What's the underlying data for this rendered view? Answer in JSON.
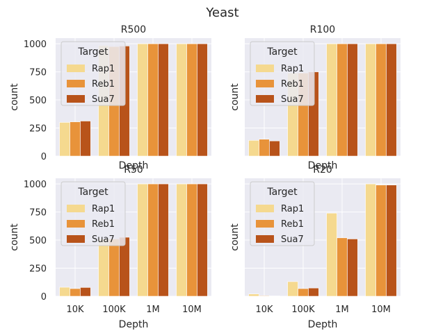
{
  "figure": {
    "title": "Yeast"
  },
  "legend": {
    "title": "Target",
    "entries": [
      "Rap1",
      "Reb1",
      "Sua7"
    ],
    "colors": [
      "#f5d98f",
      "#e8933a",
      "#b8531a"
    ]
  },
  "colors": {
    "panel_background": "#eaeaf2",
    "grid": "#ffffff",
    "text": "#262626"
  },
  "chart_data": [
    {
      "type": "bar",
      "title": "R500",
      "categories": [
        "10K",
        "100K",
        "1M",
        "10M"
      ],
      "xlabel": "Depth",
      "ylabel": "count",
      "ylim": [
        0,
        1050
      ],
      "yticks": [
        0,
        250,
        500,
        750,
        1000
      ],
      "show_xticks": false,
      "show_yticks": true,
      "grid": true,
      "legend_position": "upper-left",
      "series": [
        {
          "name": "Rap1",
          "values": [
            300,
            985,
            1000,
            1000
          ]
        },
        {
          "name": "Reb1",
          "values": [
            305,
            975,
            1000,
            1000
          ]
        },
        {
          "name": "Sua7",
          "values": [
            312,
            980,
            1000,
            1000
          ]
        }
      ]
    },
    {
      "type": "bar",
      "title": "R100",
      "categories": [
        "10K",
        "100K",
        "1M",
        "10M"
      ],
      "xlabel": "Depth",
      "ylabel": "count",
      "ylim": [
        0,
        1050
      ],
      "yticks": [
        0,
        250,
        500,
        750,
        1000
      ],
      "show_xticks": false,
      "show_yticks": false,
      "grid": true,
      "legend_position": "upper-left",
      "series": [
        {
          "name": "Rap1",
          "values": [
            140,
            740,
            1000,
            1000
          ]
        },
        {
          "name": "Reb1",
          "values": [
            150,
            740,
            1000,
            1000
          ]
        },
        {
          "name": "Sua7",
          "values": [
            135,
            750,
            1000,
            1000
          ]
        }
      ]
    },
    {
      "type": "bar",
      "title": "R50",
      "categories": [
        "10K",
        "100K",
        "1M",
        "10M"
      ],
      "xlabel": "Depth",
      "ylabel": "count",
      "ylim": [
        0,
        1050
      ],
      "yticks": [
        0,
        250,
        500,
        750,
        1000
      ],
      "show_xticks": true,
      "show_yticks": true,
      "grid": true,
      "legend_position": "upper-left",
      "series": [
        {
          "name": "Rap1",
          "values": [
            80,
            510,
            1000,
            1000
          ]
        },
        {
          "name": "Reb1",
          "values": [
            68,
            510,
            1000,
            1000
          ]
        },
        {
          "name": "Sua7",
          "values": [
            78,
            525,
            1000,
            1000
          ]
        }
      ]
    },
    {
      "type": "bar",
      "title": "R20",
      "categories": [
        "10K",
        "100K",
        "1M",
        "10M"
      ],
      "xlabel": "Depth",
      "ylabel": "count",
      "ylim": [
        0,
        1050
      ],
      "yticks": [
        0,
        250,
        500,
        750,
        1000
      ],
      "show_xticks": true,
      "show_yticks": false,
      "grid": true,
      "legend_position": "upper-left",
      "series": [
        {
          "name": "Rap1",
          "values": [
            20,
            130,
            740,
            1000
          ]
        },
        {
          "name": "Reb1",
          "values": [
            5,
            68,
            520,
            990
          ]
        },
        {
          "name": "Sua7",
          "values": [
            3,
            73,
            510,
            990
          ]
        }
      ]
    }
  ]
}
